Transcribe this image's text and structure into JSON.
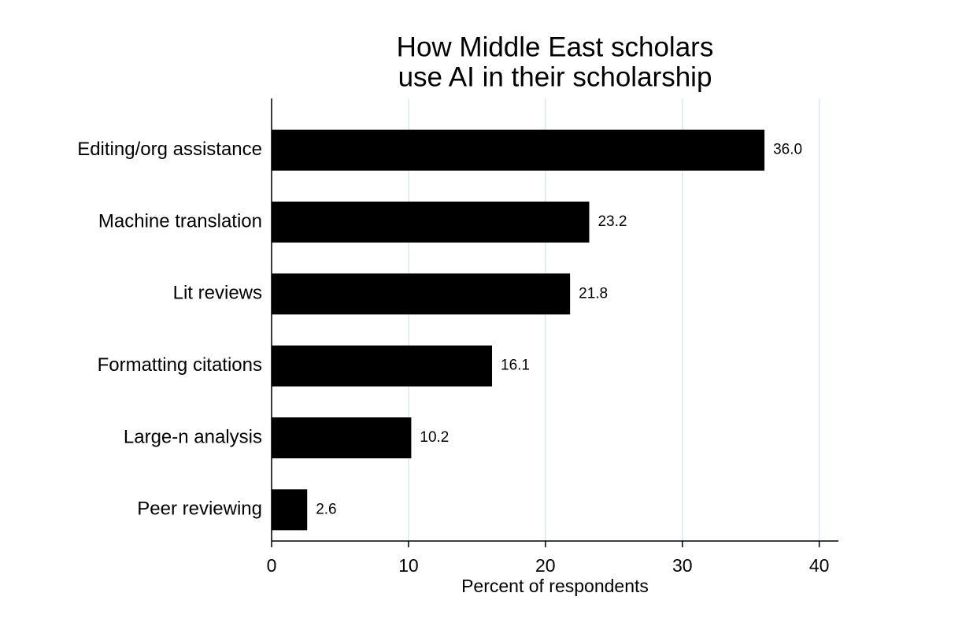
{
  "chart_data": {
    "type": "bar",
    "orientation": "horizontal",
    "title": [
      "How Middle East scholars",
      "use AI in their scholarship"
    ],
    "xlabel": "Percent of respondents",
    "categories": [
      "Editing/org assistance",
      "Machine translation",
      "Lit reviews",
      "Formatting citations",
      "Large-n analysis",
      "Peer reviewing"
    ],
    "values": [
      36.0,
      23.2,
      21.8,
      16.1,
      10.2,
      2.6
    ],
    "value_labels": [
      "36.0",
      "23.2",
      "21.8",
      "16.1",
      "10.2",
      "2.6"
    ],
    "color": "#000000",
    "xlim": [
      0,
      41.4
    ],
    "xticks": [
      0,
      10,
      20,
      30,
      40
    ],
    "grid": true
  }
}
